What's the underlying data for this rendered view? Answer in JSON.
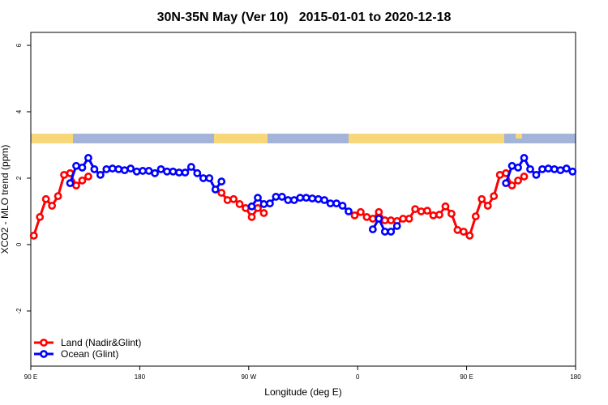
{
  "chart_data": {
    "type": "line",
    "title": "30N-35N May (Ver 10)   2015-01-01 to 2020-12-18",
    "x_label": "Longitude (deg E)",
    "y_label": "XCO2 - MLO trend (ppm)",
    "xlim": [
      90,
      540
    ],
    "ylim": [
      -3.66,
      6.39
    ],
    "xticks": [
      {
        "value": 90,
        "label": "90 E"
      },
      180,
      {
        "value": 270,
        "label": "90 W"
      },
      {
        "value": 360,
        "label": "0"
      },
      {
        "value": 450,
        "label": "90 E"
      },
      {
        "value": 540,
        "label": "180"
      }
    ],
    "yticks": [
      -2,
      0,
      2,
      4,
      6
    ],
    "legend": "bottom-left",
    "x": [
      92.5,
      97.5,
      102.5,
      107.5,
      112.5,
      117.5,
      122.5,
      127.5,
      132.5,
      137.5,
      142.5,
      147.5,
      152.5,
      157.5,
      162.5,
      167.5,
      172.5,
      177.5,
      182.5,
      187.5,
      192.5,
      197.5,
      202.5,
      207.5,
      212.5,
      217.5,
      222.5,
      227.5,
      232.5,
      237.5,
      242.5,
      247.5,
      252.5,
      257.5,
      262.5,
      267.5,
      272.5,
      277.5,
      282.5,
      287.5,
      292.5,
      297.5,
      302.5,
      307.5,
      312.5,
      317.5,
      322.5,
      327.5,
      332.5,
      337.5,
      342.5,
      347.5,
      352.5,
      357.5,
      362.5,
      367.5,
      372.5,
      377.5,
      382.5,
      387.5,
      392.5,
      397.5,
      402.5,
      407.5,
      412.5,
      417.5,
      422.5,
      427.5,
      432.5,
      437.5,
      442.5,
      447.5,
      452.5,
      457.5,
      462.5,
      467.5,
      472.5,
      477.5,
      482.5,
      487.5,
      492.5,
      497.5,
      502.5,
      507.5,
      512.5,
      517.5,
      522.5,
      527.5,
      532.5,
      537.5
    ],
    "series": [
      {
        "name": "Land (Nadir&Glint)",
        "color": "#ff0000",
        "values": [
          0.27,
          0.83,
          1.37,
          1.17,
          1.46,
          2.1,
          2.15,
          1.78,
          1.93,
          2.05,
          null,
          null,
          null,
          null,
          null,
          null,
          null,
          null,
          null,
          null,
          null,
          null,
          null,
          null,
          null,
          null,
          null,
          null,
          null,
          null,
          null,
          1.56,
          1.34,
          1.37,
          1.22,
          1.1,
          0.83,
          1.1,
          0.95,
          null,
          null,
          null,
          null,
          null,
          null,
          null,
          null,
          null,
          null,
          null,
          null,
          null,
          null,
          0.88,
          0.98,
          0.83,
          0.78,
          0.98,
          0.73,
          0.73,
          0.71,
          0.78,
          0.78,
          1.07,
          1.0,
          1.02,
          0.88,
          0.9,
          1.15,
          0.93,
          0.44,
          0.39,
          0.27,
          0.85,
          1.37,
          1.17,
          1.46,
          2.1,
          2.15,
          1.78,
          1.93,
          2.05,
          null,
          null,
          null,
          null,
          null,
          null,
          null,
          null
        ]
      },
      {
        "name": "Ocean (Glint)",
        "color": "#0000ff",
        "values": [
          null,
          null,
          null,
          null,
          null,
          null,
          1.85,
          2.37,
          2.32,
          2.61,
          2.27,
          2.1,
          2.27,
          2.29,
          2.27,
          2.24,
          2.29,
          2.2,
          2.22,
          2.22,
          2.15,
          2.27,
          2.2,
          2.2,
          2.17,
          2.17,
          2.34,
          2.15,
          2.0,
          2.0,
          1.66,
          1.9,
          null,
          null,
          null,
          null,
          1.15,
          1.41,
          1.22,
          1.24,
          1.44,
          1.44,
          1.34,
          1.34,
          1.41,
          1.41,
          1.39,
          1.37,
          1.34,
          1.24,
          1.24,
          1.17,
          1.0,
          null,
          null,
          null,
          0.46,
          0.78,
          0.39,
          0.39,
          0.56,
          null,
          null,
          null,
          null,
          null,
          null,
          null,
          null,
          null,
          null,
          null,
          null,
          null,
          null,
          null,
          null,
          null,
          1.85,
          2.37,
          2.32,
          2.61,
          2.27,
          2.1,
          2.27,
          2.29,
          2.27,
          2.24,
          2.29,
          2.2
        ]
      }
    ]
  }
}
